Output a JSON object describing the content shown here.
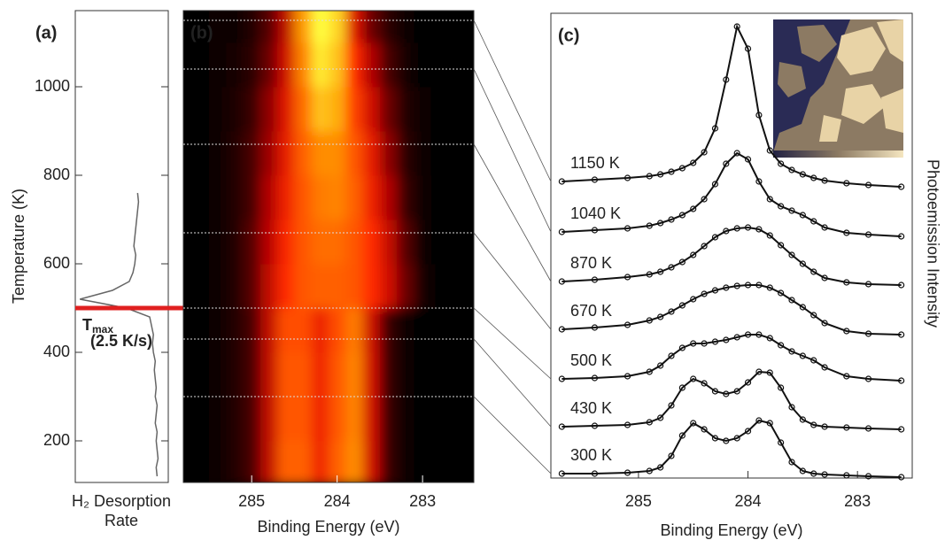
{
  "chart_data": [
    {
      "type": "trace",
      "panel_label": "(a)",
      "ylabel": "Temperature (K)",
      "xlabel": [
        "H₂ Desorption",
        "Rate"
      ],
      "ylim": [
        106,
        1172
      ],
      "yticks": [
        200,
        400,
        600,
        800,
        1000
      ],
      "xlim": [
        1,
        0
      ],
      "x": [
        120,
        140,
        160,
        180,
        200,
        220,
        240,
        260,
        280,
        300,
        320,
        340,
        360,
        380,
        400,
        420,
        440,
        460,
        480,
        500,
        520,
        540,
        560,
        580,
        600,
        620,
        640,
        660,
        680,
        700,
        720,
        740,
        760
      ],
      "series": [
        {
          "color": "#666666",
          "values": [
            0.12,
            0.13,
            0.11,
            0.12,
            0.13,
            0.12,
            0.14,
            0.13,
            0.12,
            0.14,
            0.13,
            0.14,
            0.15,
            0.14,
            0.16,
            0.17,
            0.16,
            0.18,
            0.2,
            0.45,
            0.95,
            0.6,
            0.42,
            0.38,
            0.36,
            0.35,
            0.37,
            0.36,
            0.35,
            0.34,
            0.33,
            0.32,
            0.33
          ]
        }
      ],
      "annotation": {
        "text": "T",
        "subscript": "max",
        "note": "(2.5 K/s)",
        "value": 500,
        "color": "#e02020"
      }
    },
    {
      "type": "heatmap",
      "panel_label": "(b)",
      "xlabel": "Binding Energy (eV)",
      "xlim": [
        285.8,
        282.4
      ],
      "xticks": [
        285,
        284,
        283
      ],
      "ylim": [
        106,
        1172
      ],
      "x": [
        285.6,
        285.4,
        285.2,
        285.0,
        284.8,
        284.6,
        284.4,
        284.2,
        284.0,
        283.8,
        283.6,
        283.4,
        283.2,
        283.0,
        282.8,
        282.6
      ],
      "y": [
        150,
        250,
        350,
        450,
        550,
        650,
        750,
        850,
        950,
        1050,
        1150
      ],
      "clim": [
        0,
        1
      ],
      "colormap": [
        "#000000",
        "#b00000",
        "#ff2a00",
        "#ff9a00",
        "#ffff40"
      ],
      "z": [
        [
          0,
          0.02,
          0.05,
          0.1,
          0.3,
          0.62,
          0.62,
          0.45,
          0.62,
          0.72,
          0.35,
          0.08,
          0.02,
          0,
          0,
          0
        ],
        [
          0,
          0.02,
          0.05,
          0.1,
          0.3,
          0.6,
          0.6,
          0.45,
          0.6,
          0.7,
          0.35,
          0.08,
          0.02,
          0,
          0,
          0
        ],
        [
          0,
          0.02,
          0.05,
          0.1,
          0.3,
          0.6,
          0.6,
          0.45,
          0.6,
          0.7,
          0.35,
          0.08,
          0.02,
          0,
          0,
          0
        ],
        [
          0,
          0.02,
          0.05,
          0.1,
          0.3,
          0.58,
          0.58,
          0.44,
          0.58,
          0.68,
          0.34,
          0.08,
          0.02,
          0,
          0,
          0
        ],
        [
          0,
          0.02,
          0.05,
          0.12,
          0.3,
          0.5,
          0.6,
          0.62,
          0.62,
          0.6,
          0.5,
          0.35,
          0.15,
          0.03,
          0,
          0
        ],
        [
          0,
          0.02,
          0.05,
          0.12,
          0.28,
          0.48,
          0.6,
          0.65,
          0.65,
          0.6,
          0.5,
          0.32,
          0.12,
          0.02,
          0,
          0
        ],
        [
          0,
          0.02,
          0.05,
          0.1,
          0.25,
          0.45,
          0.6,
          0.68,
          0.7,
          0.62,
          0.45,
          0.25,
          0.08,
          0.02,
          0,
          0
        ],
        [
          0,
          0.02,
          0.05,
          0.1,
          0.22,
          0.42,
          0.62,
          0.72,
          0.72,
          0.6,
          0.42,
          0.2,
          0.06,
          0.01,
          0,
          0
        ],
        [
          0,
          0.02,
          0.04,
          0.08,
          0.2,
          0.4,
          0.65,
          0.85,
          0.8,
          0.55,
          0.35,
          0.15,
          0.05,
          0.01,
          0,
          0
        ],
        [
          0,
          0.02,
          0.03,
          0.06,
          0.15,
          0.35,
          0.7,
          0.95,
          0.85,
          0.5,
          0.25,
          0.1,
          0.03,
          0,
          0,
          0
        ],
        [
          0,
          0.01,
          0.02,
          0.05,
          0.12,
          0.3,
          0.75,
          1,
          0.9,
          0.4,
          0.15,
          0.06,
          0.02,
          0,
          0,
          0
        ]
      ]
    },
    {
      "type": "spectra",
      "panel_label": "(c)",
      "xlabel": "Binding Energy (eV)",
      "ylabel": "Photoemission Intensity",
      "xlim": [
        285.8,
        282.5
      ],
      "xticks": [
        285,
        284,
        283
      ],
      "ylim": [
        0,
        5.25
      ],
      "x": [
        285.7,
        285.4,
        285.1,
        284.9,
        284.8,
        284.7,
        284.6,
        284.5,
        284.4,
        284.3,
        284.2,
        284.1,
        284.0,
        283.9,
        283.8,
        283.7,
        283.6,
        283.5,
        283.4,
        283.3,
        283.1,
        282.9,
        282.6
      ],
      "series": [
        {
          "name": "300 K",
          "temperature": 300,
          "color": "#111111",
          "values": [
            0.05,
            0.05,
            0.06,
            0.08,
            0.12,
            0.25,
            0.48,
            0.62,
            0.55,
            0.45,
            0.42,
            0.45,
            0.53,
            0.65,
            0.62,
            0.4,
            0.18,
            0.08,
            0.05,
            0.04,
            0.03,
            0.02,
            0.01
          ]
        },
        {
          "name": "430 K",
          "temperature": 430,
          "color": "#111111",
          "values": [
            0.58,
            0.59,
            0.6,
            0.63,
            0.68,
            0.82,
            1.02,
            1.12,
            1.07,
            0.98,
            0.95,
            0.98,
            1.08,
            1.2,
            1.19,
            1.02,
            0.8,
            0.66,
            0.6,
            0.58,
            0.57,
            0.56,
            0.55
          ]
        },
        {
          "name": "500 K",
          "temperature": 500,
          "color": "#111111",
          "values": [
            1.12,
            1.13,
            1.15,
            1.2,
            1.27,
            1.38,
            1.47,
            1.52,
            1.52,
            1.54,
            1.56,
            1.59,
            1.62,
            1.62,
            1.58,
            1.5,
            1.43,
            1.38,
            1.33,
            1.25,
            1.15,
            1.12,
            1.1
          ]
        },
        {
          "name": "670 K",
          "temperature": 670,
          "color": "#111111",
          "values": [
            1.68,
            1.7,
            1.73,
            1.78,
            1.82,
            1.88,
            1.95,
            2.02,
            2.08,
            2.12,
            2.15,
            2.17,
            2.18,
            2.18,
            2.15,
            2.09,
            2.01,
            1.93,
            1.84,
            1.75,
            1.66,
            1.63,
            1.62
          ]
        },
        {
          "name": "870 K",
          "temperature": 870,
          "color": "#111111",
          "values": [
            2.22,
            2.24,
            2.27,
            2.3,
            2.33,
            2.38,
            2.44,
            2.52,
            2.62,
            2.72,
            2.79,
            2.82,
            2.83,
            2.81,
            2.74,
            2.63,
            2.52,
            2.42,
            2.33,
            2.26,
            2.21,
            2.19,
            2.18
          ]
        },
        {
          "name": "1040 K",
          "temperature": 1040,
          "color": "#111111",
          "values": [
            2.78,
            2.8,
            2.82,
            2.85,
            2.88,
            2.92,
            2.97,
            3.04,
            3.15,
            3.32,
            3.55,
            3.67,
            3.6,
            3.35,
            3.15,
            3.07,
            3.02,
            2.97,
            2.9,
            2.83,
            2.77,
            2.75,
            2.73
          ]
        },
        {
          "name": "1150 K",
          "temperature": 1150,
          "color": "#111111",
          "values": [
            3.35,
            3.37,
            3.39,
            3.41,
            3.43,
            3.46,
            3.5,
            3.56,
            3.68,
            3.95,
            4.5,
            5.1,
            4.85,
            4.1,
            3.7,
            3.55,
            3.48,
            3.43,
            3.39,
            3.36,
            3.33,
            3.31,
            3.29
          ]
        }
      ]
    }
  ]
}
